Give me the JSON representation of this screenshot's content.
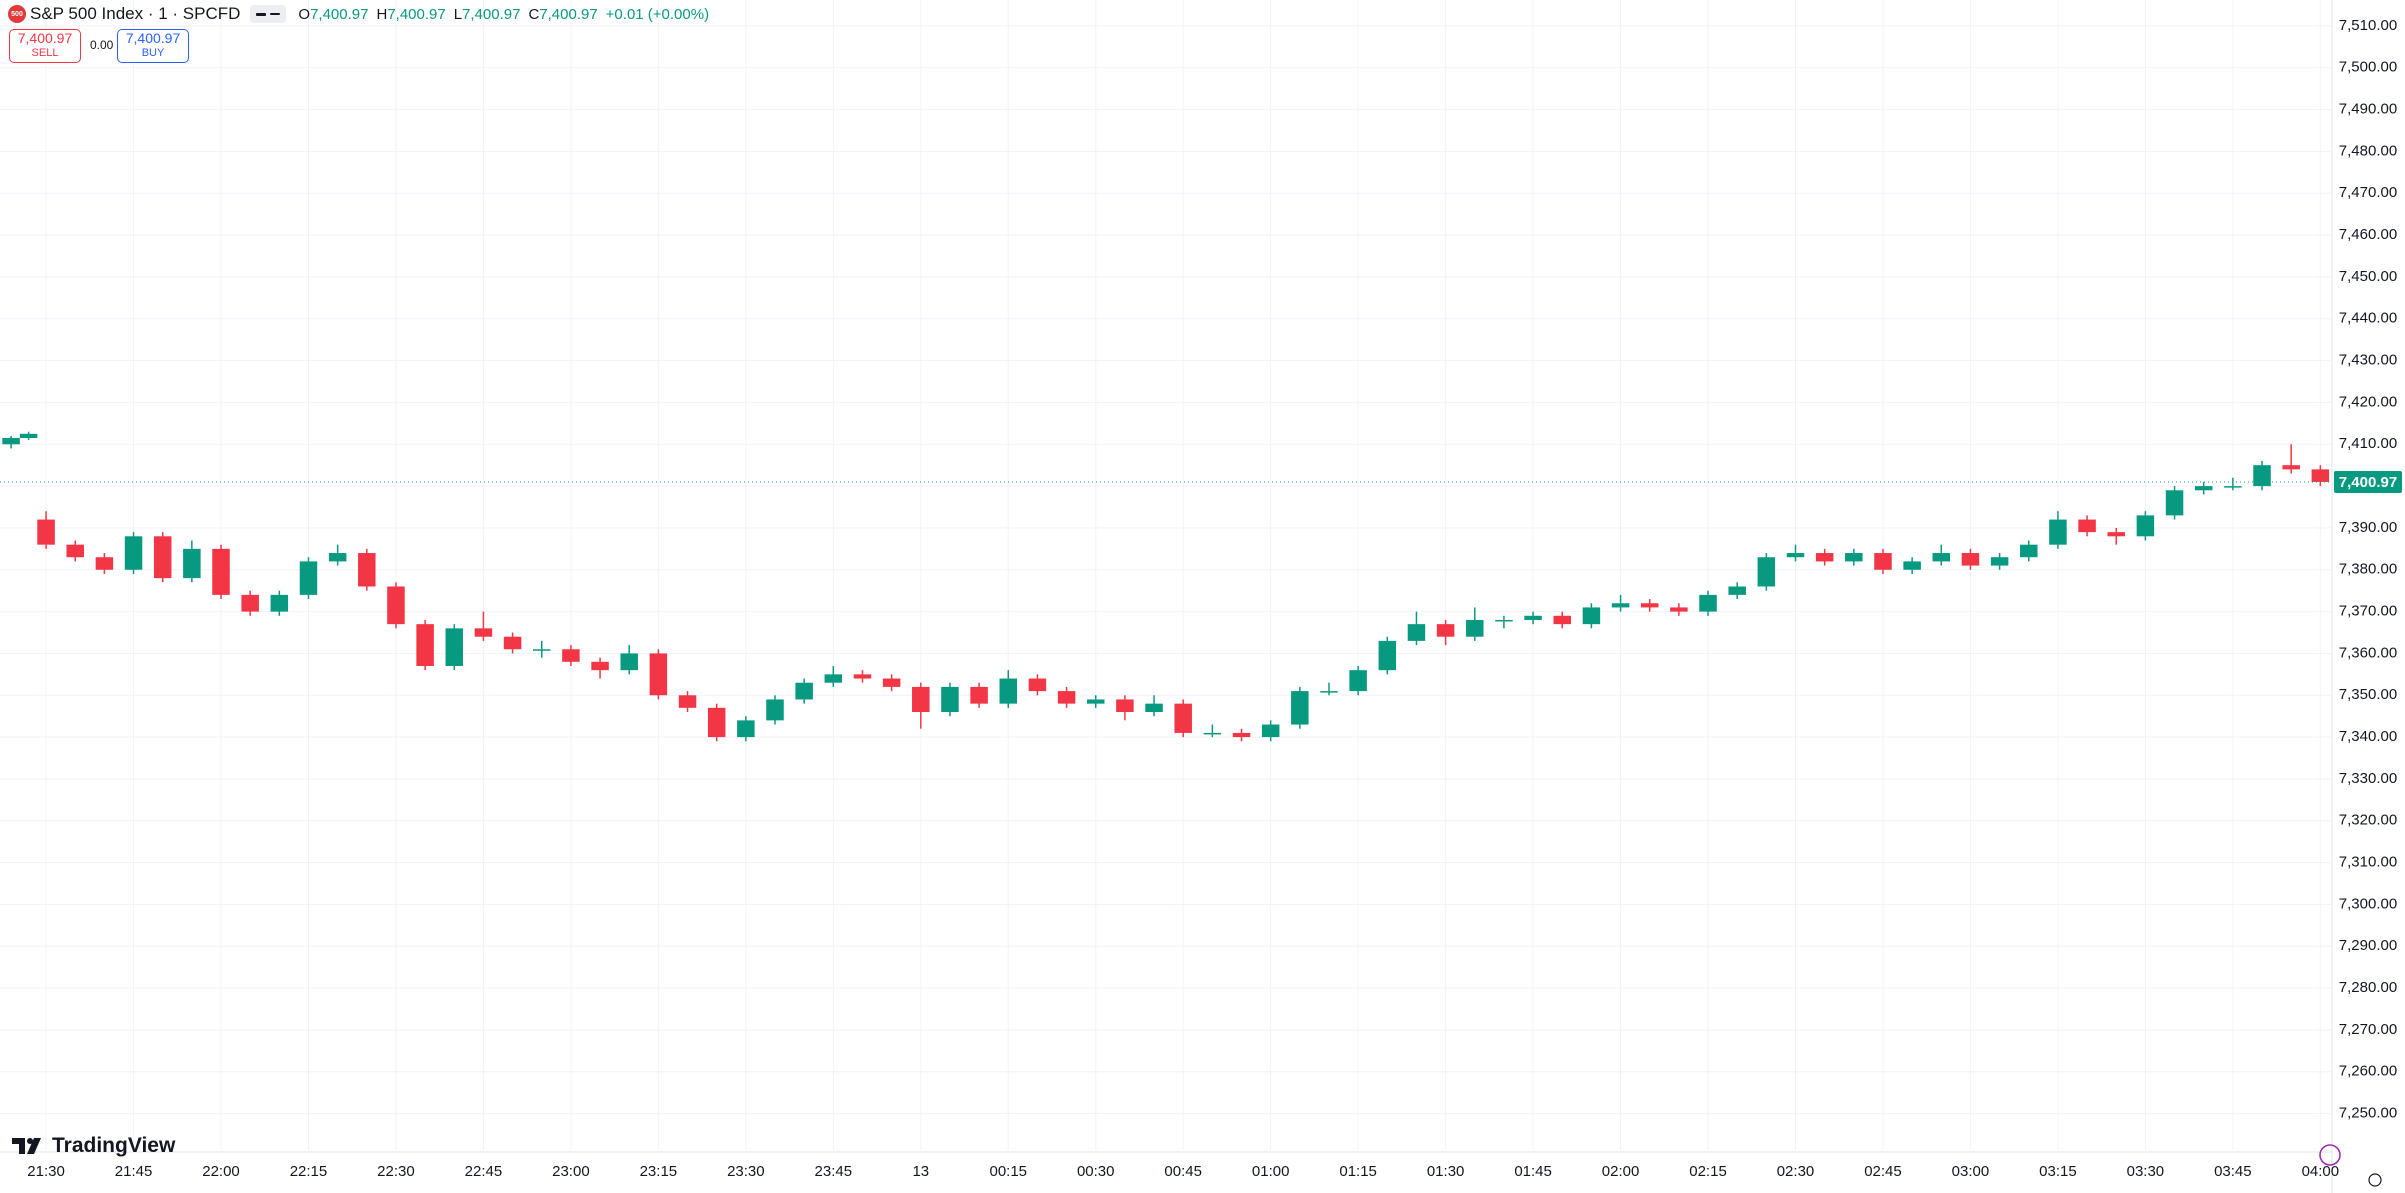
{
  "header": {
    "logo": "500",
    "title": "S&P 500 Index · 1 · SPCFD",
    "ohlc": [
      {
        "label": "O",
        "value": "7,400.97"
      },
      {
        "label": "H",
        "value": "7,400.97"
      },
      {
        "label": "L",
        "value": "7,400.97"
      },
      {
        "label": "C",
        "value": "7,400.97"
      }
    ],
    "change": "+0.01 (+0.00%)",
    "sell": {
      "price": "7,400.97",
      "label": "SELL"
    },
    "spread": "0.00",
    "buy": {
      "price": "7,400.97",
      "label": "BUY"
    },
    "brand": "TradingView"
  },
  "chart_data": {
    "type": "candlestick",
    "up_color": "#089981",
    "down_color": "#f23645",
    "grid": true,
    "xlim": [
      -7.9,
      392
    ],
    "ylim": [
      7241.3,
      7516.2
    ],
    "xticks": [
      {
        "value": 0,
        "label": "21:30"
      },
      {
        "value": 15,
        "label": "21:45"
      },
      {
        "value": 30,
        "label": "22:00"
      },
      {
        "value": 45,
        "label": "22:15"
      },
      {
        "value": 60,
        "label": "22:30"
      },
      {
        "value": 75,
        "label": "22:45"
      },
      {
        "value": 90,
        "label": "23:00"
      },
      {
        "value": 105,
        "label": "23:15"
      },
      {
        "value": 120,
        "label": "23:30"
      },
      {
        "value": 135,
        "label": "23:45"
      },
      {
        "value": 150,
        "label": "13"
      },
      {
        "value": 165,
        "label": "00:15"
      },
      {
        "value": 180,
        "label": "00:30"
      },
      {
        "value": 195,
        "label": "00:45"
      },
      {
        "value": 210,
        "label": "01:00"
      },
      {
        "value": 225,
        "label": "01:15"
      },
      {
        "value": 240,
        "label": "01:30"
      },
      {
        "value": 255,
        "label": "01:45"
      },
      {
        "value": 270,
        "label": "02:00"
      },
      {
        "value": 285,
        "label": "02:15"
      },
      {
        "value": 300,
        "label": "02:30"
      },
      {
        "value": 315,
        "label": "02:45"
      },
      {
        "value": 330,
        "label": "03:00"
      },
      {
        "value": 345,
        "label": "03:15"
      },
      {
        "value": 360,
        "label": "03:30"
      },
      {
        "value": 375,
        "label": "03:45"
      },
      {
        "value": 390,
        "label": "04:00"
      }
    ],
    "yticks": [
      {
        "value": 7250,
        "label": "7,250.00"
      },
      {
        "value": 7260,
        "label": "7,260.00"
      },
      {
        "value": 7270,
        "label": "7,270.00"
      },
      {
        "value": 7280,
        "label": "7,280.00"
      },
      {
        "value": 7290,
        "label": "7,290.00"
      },
      {
        "value": 7300,
        "label": "7,300.00"
      },
      {
        "value": 7310,
        "label": "7,310.00"
      },
      {
        "value": 7320,
        "label": "7,320.00"
      },
      {
        "value": 7330,
        "label": "7,330.00"
      },
      {
        "value": 7340,
        "label": "7,340.00"
      },
      {
        "value": 7350,
        "label": "7,350.00"
      },
      {
        "value": 7360,
        "label": "7,360.00"
      },
      {
        "value": 7370,
        "label": "7,370.00"
      },
      {
        "value": 7380,
        "label": "7,380.00"
      },
      {
        "value": 7390,
        "label": "7,390.00"
      },
      {
        "value": 7400,
        "label": "7,400.00"
      },
      {
        "value": 7410,
        "label": "7,410.00"
      },
      {
        "value": 7420,
        "label": "7,420.00"
      },
      {
        "value": 7430,
        "label": "7,430.00"
      },
      {
        "value": 7440,
        "label": "7,440.00"
      },
      {
        "value": 7450,
        "label": "7,450.00"
      },
      {
        "value": 7460,
        "label": "7,460.00"
      },
      {
        "value": 7470,
        "label": "7,470.00"
      },
      {
        "value": 7480,
        "label": "7,480.00"
      },
      {
        "value": 7490,
        "label": "7,490.00"
      },
      {
        "value": 7500,
        "label": "7,500.00"
      },
      {
        "value": 7510,
        "label": "7,510.00"
      }
    ],
    "last_price": {
      "value": 7400.97,
      "label": "7,400.97"
    },
    "x": [
      -6,
      -3,
      0,
      5,
      10,
      15,
      20,
      25,
      30,
      35,
      40,
      45,
      50,
      55,
      60,
      65,
      70,
      75,
      80,
      85,
      90,
      95,
      100,
      105,
      110,
      115,
      120,
      125,
      130,
      135,
      140,
      145,
      150,
      155,
      160,
      165,
      170,
      175,
      180,
      185,
      190,
      195,
      200,
      205,
      210,
      215,
      220,
      225,
      230,
      235,
      240,
      245,
      250,
      255,
      260,
      265,
      270,
      275,
      280,
      285,
      290,
      295,
      300,
      305,
      310,
      315,
      320,
      325,
      330,
      335,
      340,
      345,
      350,
      355,
      360,
      365,
      370,
      375,
      380,
      385,
      390
    ],
    "open": [
      7410,
      7411.5,
      7392,
      7386,
      7383,
      7380,
      7388,
      7378,
      7385,
      7374,
      7370,
      7374,
      7382,
      7384,
      7376,
      7367,
      7357,
      7366,
      7364,
      7361,
      7361,
      7358,
      7356,
      7360,
      7350,
      7347,
      7340,
      7344,
      7349,
      7353,
      7355,
      7354,
      7352,
      7346,
      7352,
      7348,
      7354,
      7351,
      7348,
      7349,
      7346,
      7348,
      7341,
      7341,
      7340,
      7343,
      7351,
      7351,
      7356,
      7363,
      7367,
      7364,
      7368,
      7368,
      7369,
      7367,
      7371,
      7372,
      7371,
      7370,
      7374,
      7376,
      7383,
      7384,
      7382,
      7384,
      7380,
      7382,
      7384,
      7381,
      7383,
      7386,
      7392,
      7389,
      7388,
      7393,
      7399,
      7400,
      7400,
      7405,
      7404
    ],
    "high": [
      7412,
      7413,
      7394,
      7387,
      7384,
      7389,
      7389,
      7387,
      7386,
      7375,
      7375,
      7383,
      7386,
      7385,
      7377,
      7368,
      7367,
      7370,
      7365,
      7363,
      7362,
      7359,
      7362,
      7361,
      7351,
      7348,
      7345,
      7350,
      7354,
      7357,
      7356,
      7355,
      7353,
      7353,
      7353,
      7356,
      7355,
      7352,
      7350,
      7350,
      7350,
      7349,
      7343,
      7342,
      7344,
      7352,
      7353,
      7357,
      7364,
      7370,
      7368,
      7371,
      7369,
      7370,
      7370,
      7372,
      7374,
      7373,
      7372,
      7375,
      7377,
      7384,
      7386,
      7385,
      7385,
      7385,
      7383,
      7386,
      7385,
      7384,
      7387,
      7394,
      7393,
      7390,
      7394,
      7400,
      7401,
      7402,
      7406,
      7410,
      7405
    ],
    "low": [
      7409,
      7411,
      7385,
      7382,
      7379,
      7379,
      7377,
      7377,
      7373,
      7369,
      7369,
      7373,
      7381,
      7375,
      7366,
      7356,
      7356,
      7363,
      7360,
      7359,
      7357,
      7354,
      7355,
      7349,
      7346,
      7339,
      7339,
      7343,
      7348,
      7352,
      7353,
      7351,
      7342,
      7345,
      7347,
      7347,
      7350,
      7347,
      7347,
      7344,
      7345,
      7340,
      7340,
      7339,
      7339,
      7342,
      7350,
      7350,
      7355,
      7362,
      7362,
      7363,
      7366,
      7367,
      7366,
      7366,
      7370,
      7370,
      7369,
      7369,
      7373,
      7375,
      7382,
      7381,
      7381,
      7379,
      7379,
      7381,
      7380,
      7380,
      7382,
      7385,
      7388,
      7386,
      7387,
      7392,
      7398,
      7399,
      7399,
      7403,
      7400
    ],
    "close": [
      7411.5,
      7412.5,
      7386,
      7383,
      7380,
      7388,
      7378,
      7385,
      7374,
      7370,
      7374,
      7382,
      7384,
      7376,
      7367,
      7357,
      7366,
      7364,
      7361,
      7361,
      7358,
      7356,
      7360,
      7350,
      7347,
      7340,
      7344,
      7349,
      7353,
      7355,
      7354,
      7352,
      7346,
      7352,
      7348,
      7354,
      7351,
      7348,
      7349,
      7346,
      7348,
      7341,
      7341,
      7340,
      7343,
      7351,
      7351,
      7356,
      7363,
      7367,
      7364,
      7368,
      7368,
      7369,
      7367,
      7371,
      7372,
      7371,
      7370,
      7374,
      7376,
      7383,
      7384,
      7382,
      7384,
      7380,
      7382,
      7384,
      7381,
      7383,
      7386,
      7392,
      7389,
      7388,
      7393,
      7399,
      7400,
      7400,
      7405,
      7404,
      7401
    ]
  }
}
